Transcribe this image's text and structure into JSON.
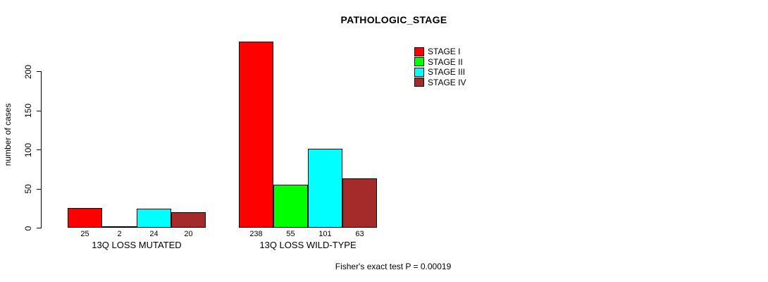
{
  "chart_data": {
    "type": "bar",
    "title": "PATHOLOGIC_STAGE",
    "ylabel": "number of cases",
    "xlabel": "",
    "categories": [
      "13Q LOSS MUTATED",
      "13Q LOSS WILD-TYPE"
    ],
    "series": [
      {
        "name": "STAGE I",
        "color": "#ff0000",
        "values": [
          25,
          238
        ]
      },
      {
        "name": "STAGE II",
        "color": "#00ff00",
        "values": [
          2,
          55
        ]
      },
      {
        "name": "STAGE III",
        "color": "#00ffff",
        "values": [
          24,
          101
        ]
      },
      {
        "name": "STAGE IV",
        "color": "#a52a2a",
        "values": [
          20,
          63
        ]
      }
    ],
    "yticks": [
      0,
      50,
      100,
      150,
      200
    ],
    "ylim": [
      0,
      238
    ],
    "show_value_labels": true,
    "grid": false,
    "legend_position": "top-right",
    "annotation": "Fisher's exact test P = 0.00019"
  }
}
